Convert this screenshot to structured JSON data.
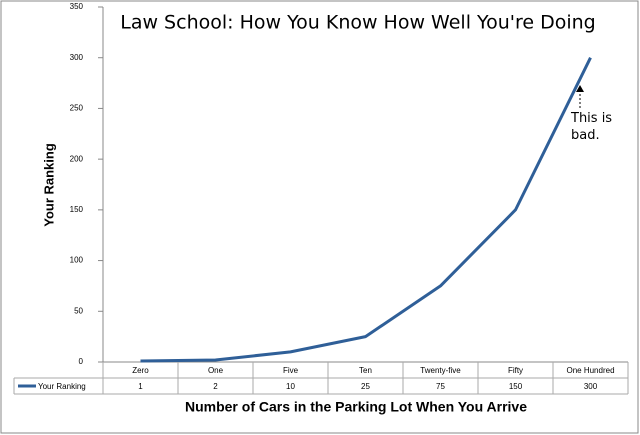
{
  "chart_data": {
    "type": "line",
    "title": "Law School: How You Know How Well You're Doing",
    "x_label": "Number of Cars in the Parking Lot When You Arrive",
    "y_label": "Your Ranking",
    "categories": [
      "Zero",
      "One",
      "Five",
      "Ten",
      "Twenty-five",
      "Fifty",
      "One Hundred"
    ],
    "series": [
      {
        "name": "Your Ranking",
        "color": "#2f5f98",
        "values": [
          1,
          2,
          10,
          25,
          75,
          150,
          300
        ]
      }
    ],
    "ylim": [
      0,
      350
    ],
    "yticks": [
      0,
      50,
      100,
      150,
      200,
      250,
      300,
      350
    ],
    "grid": false,
    "data_table": true,
    "annotation": "This is bad."
  }
}
